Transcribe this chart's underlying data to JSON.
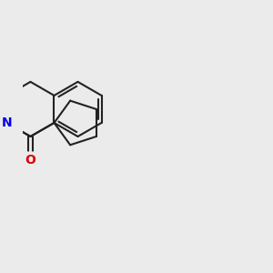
{
  "background_color": "#ebebeb",
  "bond_color": "#222222",
  "N_color": "#0000ee",
  "O_color": "#dd0000",
  "line_width": 1.5,
  "fig_size": [
    3.0,
    3.0
  ],
  "dpi": 100
}
